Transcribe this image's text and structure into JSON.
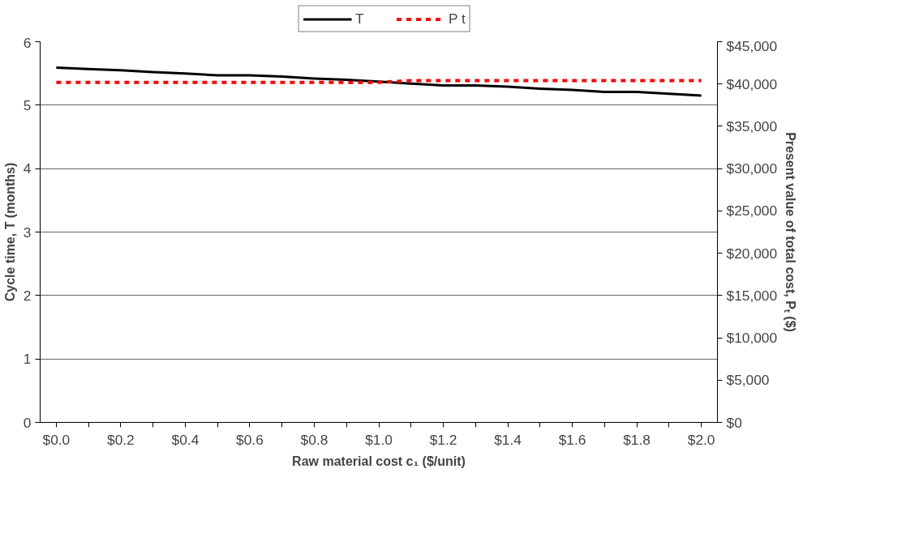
{
  "chart_data": {
    "type": "line",
    "xlabel": "Raw material cost c₁ ($/unit)",
    "ylabel": "Cycle time, T (months)",
    "y2label": "Present value of total cost, Pₜ ($)",
    "categories": [
      "$0.0",
      null,
      "$0.2",
      null,
      "$0.4",
      null,
      "$0.6",
      null,
      "$0.8",
      null,
      "$1.0",
      null,
      "$1.2",
      null,
      "$1.4",
      null,
      "$1.6",
      null,
      "$1.8",
      null,
      "$2.0"
    ],
    "series": [
      {
        "name": "T",
        "color": "#000000",
        "line_style": "solid",
        "values": [
          5.59,
          5.57,
          5.55,
          5.52,
          5.5,
          5.47,
          5.47,
          5.45,
          5.42,
          5.4,
          5.37,
          5.34,
          5.31,
          5.31,
          5.29,
          5.26,
          5.24,
          5.21,
          5.21,
          5.18,
          5.15
        ]
      },
      {
        "name": "P t",
        "color": "#ff0000",
        "line_style": "dashed",
        "axis": "y2",
        "values": [
          40200,
          40200,
          40200,
          40200,
          40200,
          40200,
          40200,
          40200,
          40200,
          40200,
          40200,
          40400,
          40400,
          40400,
          40400,
          40400,
          40400,
          40400,
          40400,
          40400,
          40400
        ]
      }
    ],
    "ylim": [
      0,
      6
    ],
    "yticks": [
      0,
      1,
      2,
      3,
      4,
      5,
      6
    ],
    "y2lim": [
      0,
      45000
    ],
    "y2ticks": [
      {
        "value": 0,
        "label": "$0"
      },
      {
        "value": 5000,
        "label": "$5,000"
      },
      {
        "value": 10000,
        "label": "$10,000"
      },
      {
        "value": 15000,
        "label": "$15,000"
      },
      {
        "value": 20000,
        "label": "$20,000"
      },
      {
        "value": 25000,
        "label": "$25,000"
      },
      {
        "value": 30000,
        "label": "$30,000"
      },
      {
        "value": 35000,
        "label": "$35,000"
      },
      {
        "value": 40000,
        "label": "$40,000"
      },
      {
        "value": 45000,
        "label": "$45,000"
      }
    ],
    "grid": "y",
    "legend": "top"
  }
}
